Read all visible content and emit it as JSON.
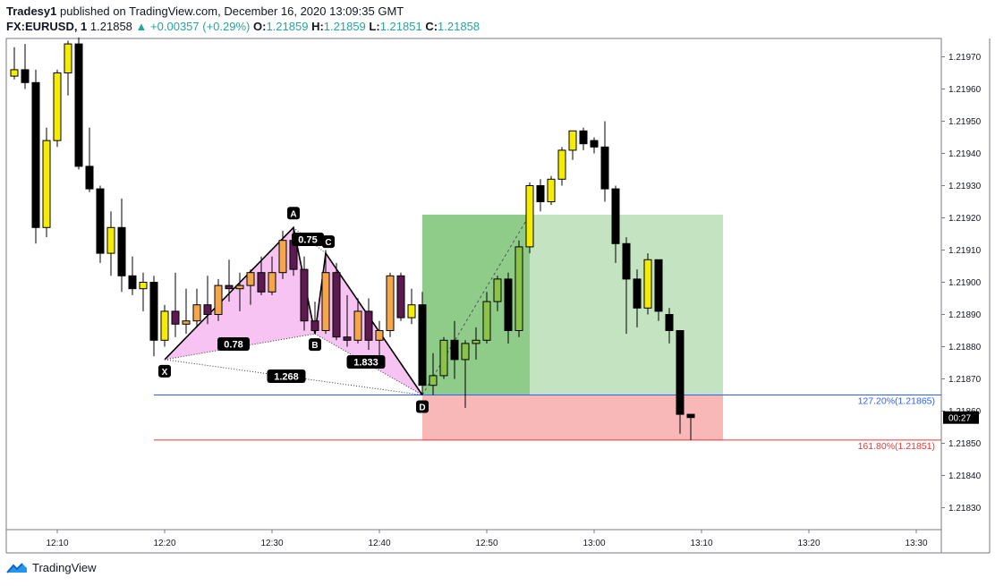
{
  "header": {
    "author": "Tradesy1",
    "published_text": "published on TradingView.com, December 16, 2020 13:09:35 GMT",
    "symbol": "FX:EURUSD, 1",
    "price": "1.21858",
    "change_arrow": "▲",
    "change": "+0.00357 (+0.29%)",
    "o_label": "O:",
    "o_value": "1.21859",
    "h_label": "H:",
    "h_value": "1.21859",
    "l_label": "L:",
    "l_value": "1.21851",
    "c_label": "C:",
    "c_value": "1.21858"
  },
  "footer": {
    "brand": "TradingView"
  },
  "chart_data": {
    "type": "candlestick",
    "timeframe": "1 minute",
    "y_range": [
      1.21823,
      1.21978
    ],
    "y_ticks": [
      "1.21970",
      "1.21960",
      "1.21950",
      "1.21940",
      "1.21930",
      "1.21920",
      "1.21910",
      "1.21900",
      "1.21890",
      "1.21880",
      "1.21870",
      "1.21860",
      "1.21850",
      "1.21840",
      "1.21830"
    ],
    "x_ticks": [
      "12:10",
      "12:20",
      "12:30",
      "12:40",
      "12:50",
      "13:00",
      "13:10",
      "13:20",
      "13:30"
    ],
    "current_price_label": "00:27",
    "colors": {
      "bearish": "#000000",
      "bullish_yellow": "#f5ec00",
      "bullish_green": "#8bc34a",
      "pattern_fill": "#f5b8f0",
      "pattern_candle_bear": "#5c1a4f",
      "pattern_candle_bull": "#f5a64a",
      "profit_zone": "#8fcc8a",
      "profit_zone_light": "#c4e3c1",
      "loss_zone": "#f9b8b8",
      "fib_127_color": "#2962ff",
      "fib_161_color": "#e53935"
    },
    "candles": [
      {
        "t": "12:06",
        "o": 1.21964,
        "h": 1.21973,
        "l": 1.21963,
        "c": 1.21966
      },
      {
        "t": "12:07",
        "o": 1.21966,
        "h": 1.21974,
        "l": 1.2196,
        "c": 1.21962
      },
      {
        "t": "12:08",
        "o": 1.21962,
        "h": 1.21966,
        "l": 1.21912,
        "c": 1.21917
      },
      {
        "t": "12:09",
        "o": 1.21917,
        "h": 1.21948,
        "l": 1.21914,
        "c": 1.21944
      },
      {
        "t": "12:10",
        "o": 1.21944,
        "h": 1.21966,
        "l": 1.21942,
        "c": 1.21965
      },
      {
        "t": "12:11",
        "o": 1.21965,
        "h": 1.21975,
        "l": 1.21958,
        "c": 1.21974
      },
      {
        "t": "12:12",
        "o": 1.21974,
        "h": 1.21976,
        "l": 1.21935,
        "c": 1.21936
      },
      {
        "t": "12:13",
        "o": 1.21936,
        "h": 1.21948,
        "l": 1.21928,
        "c": 1.21929
      },
      {
        "t": "12:14",
        "o": 1.21929,
        "h": 1.2193,
        "l": 1.21906,
        "c": 1.21909
      },
      {
        "t": "12:15",
        "o": 1.21909,
        "h": 1.21922,
        "l": 1.21902,
        "c": 1.21917
      },
      {
        "t": "12:16",
        "o": 1.21917,
        "h": 1.21926,
        "l": 1.21897,
        "c": 1.21902
      },
      {
        "t": "12:17",
        "o": 1.21902,
        "h": 1.21908,
        "l": 1.21896,
        "c": 1.21898
      },
      {
        "t": "12:18",
        "o": 1.21898,
        "h": 1.21903,
        "l": 1.21891,
        "c": 1.219
      },
      {
        "t": "12:19",
        "o": 1.219,
        "h": 1.21902,
        "l": 1.21877,
        "c": 1.21882
      },
      {
        "t": "12:20",
        "o": 1.21882,
        "h": 1.21893,
        "l": 1.2188,
        "c": 1.21891
      },
      {
        "t": "12:21",
        "o": 1.21891,
        "h": 1.21903,
        "l": 1.21883,
        "c": 1.21887
      },
      {
        "t": "12:22",
        "o": 1.21887,
        "h": 1.21898,
        "l": 1.21884,
        "c": 1.21888
      },
      {
        "t": "12:23",
        "o": 1.21888,
        "h": 1.21898,
        "l": 1.21886,
        "c": 1.21893
      },
      {
        "t": "12:24",
        "o": 1.21893,
        "h": 1.21902,
        "l": 1.21887,
        "c": 1.2189
      },
      {
        "t": "12:25",
        "o": 1.2189,
        "h": 1.21901,
        "l": 1.21888,
        "c": 1.21899
      },
      {
        "t": "12:26",
        "o": 1.21899,
        "h": 1.21907,
        "l": 1.21894,
        "c": 1.21898
      },
      {
        "t": "12:27",
        "o": 1.21898,
        "h": 1.21903,
        "l": 1.21891,
        "c": 1.21899
      },
      {
        "t": "12:28",
        "o": 1.21899,
        "h": 1.21904,
        "l": 1.21893,
        "c": 1.21903
      },
      {
        "t": "12:29",
        "o": 1.21903,
        "h": 1.21908,
        "l": 1.21896,
        "c": 1.21897
      },
      {
        "t": "12:30",
        "o": 1.21897,
        "h": 1.21908,
        "l": 1.21896,
        "c": 1.21903
      },
      {
        "t": "12:31",
        "o": 1.21903,
        "h": 1.21916,
        "l": 1.21901,
        "c": 1.21913
      },
      {
        "t": "12:32",
        "o": 1.21913,
        "h": 1.21917,
        "l": 1.21902,
        "c": 1.21904
      },
      {
        "t": "12:33",
        "o": 1.21904,
        "h": 1.21908,
        "l": 1.21885,
        "c": 1.21888
      },
      {
        "t": "12:34",
        "o": 1.21888,
        "h": 1.21894,
        "l": 1.21884,
        "c": 1.21885
      },
      {
        "t": "12:35",
        "o": 1.21885,
        "h": 1.2191,
        "l": 1.21884,
        "c": 1.21903
      },
      {
        "t": "12:36",
        "o": 1.21903,
        "h": 1.21906,
        "l": 1.21882,
        "c": 1.21883
      },
      {
        "t": "12:37",
        "o": 1.21883,
        "h": 1.21896,
        "l": 1.2188,
        "c": 1.21882
      },
      {
        "t": "12:38",
        "o": 1.21882,
        "h": 1.21895,
        "l": 1.21881,
        "c": 1.21891
      },
      {
        "t": "12:39",
        "o": 1.21891,
        "h": 1.21895,
        "l": 1.21879,
        "c": 1.21882
      },
      {
        "t": "12:40",
        "o": 1.21882,
        "h": 1.21888,
        "l": 1.21876,
        "c": 1.21885
      },
      {
        "t": "12:41",
        "o": 1.21885,
        "h": 1.21903,
        "l": 1.21883,
        "c": 1.21902
      },
      {
        "t": "12:42",
        "o": 1.21902,
        "h": 1.21903,
        "l": 1.21888,
        "c": 1.21889
      },
      {
        "t": "12:43",
        "o": 1.21889,
        "h": 1.21898,
        "l": 1.21887,
        "c": 1.21893
      },
      {
        "t": "12:44",
        "o": 1.21893,
        "h": 1.21897,
        "l": 1.21865,
        "c": 1.21868
      },
      {
        "t": "12:45",
        "o": 1.21868,
        "h": 1.21878,
        "l": 1.21865,
        "c": 1.21871
      },
      {
        "t": "12:46",
        "o": 1.21871,
        "h": 1.21883,
        "l": 1.2187,
        "c": 1.21882
      },
      {
        "t": "12:47",
        "o": 1.21882,
        "h": 1.21888,
        "l": 1.2187,
        "c": 1.21876
      },
      {
        "t": "12:48",
        "o": 1.21876,
        "h": 1.21882,
        "l": 1.21861,
        "c": 1.21881
      },
      {
        "t": "12:49",
        "o": 1.21881,
        "h": 1.21886,
        "l": 1.21876,
        "c": 1.21882
      },
      {
        "t": "12:50",
        "o": 1.21882,
        "h": 1.21897,
        "l": 1.21881,
        "c": 1.21894
      },
      {
        "t": "12:51",
        "o": 1.21894,
        "h": 1.21902,
        "l": 1.21891,
        "c": 1.21901
      },
      {
        "t": "12:52",
        "o": 1.21901,
        "h": 1.21903,
        "l": 1.21881,
        "c": 1.21885
      },
      {
        "t": "12:53",
        "o": 1.21885,
        "h": 1.21913,
        "l": 1.21883,
        "c": 1.21911
      },
      {
        "t": "12:54",
        "o": 1.21911,
        "h": 1.21931,
        "l": 1.21909,
        "c": 1.2193
      },
      {
        "t": "12:55",
        "o": 1.2193,
        "h": 1.21932,
        "l": 1.21922,
        "c": 1.21925
      },
      {
        "t": "12:56",
        "o": 1.21925,
        "h": 1.21933,
        "l": 1.21924,
        "c": 1.21932
      },
      {
        "t": "12:57",
        "o": 1.21932,
        "h": 1.21942,
        "l": 1.2193,
        "c": 1.21941
      },
      {
        "t": "12:58",
        "o": 1.21941,
        "h": 1.21947,
        "l": 1.21938,
        "c": 1.21947
      },
      {
        "t": "12:59",
        "o": 1.21947,
        "h": 1.21948,
        "l": 1.21941,
        "c": 1.21943
      },
      {
        "t": "13:00",
        "o": 1.21944,
        "h": 1.21945,
        "l": 1.2194,
        "c": 1.21942
      },
      {
        "t": "13:01",
        "o": 1.21942,
        "h": 1.2195,
        "l": 1.21925,
        "c": 1.21929
      },
      {
        "t": "13:02",
        "o": 1.21929,
        "h": 1.2193,
        "l": 1.21906,
        "c": 1.21912
      },
      {
        "t": "13:03",
        "o": 1.21912,
        "h": 1.21914,
        "l": 1.21884,
        "c": 1.21901
      },
      {
        "t": "13:04",
        "o": 1.21901,
        "h": 1.21904,
        "l": 1.21886,
        "c": 1.21892
      },
      {
        "t": "13:05",
        "o": 1.21892,
        "h": 1.21909,
        "l": 1.2189,
        "c": 1.21907
      },
      {
        "t": "13:06",
        "o": 1.21907,
        "h": 1.21907,
        "l": 1.21888,
        "c": 1.21891
      },
      {
        "t": "13:07",
        "o": 1.2189,
        "h": 1.21892,
        "l": 1.21881,
        "c": 1.21885
      },
      {
        "t": "13:08",
        "o": 1.21885,
        "h": 1.21885,
        "l": 1.21853,
        "c": 1.21859
      },
      {
        "t": "13:09",
        "o": 1.21859,
        "h": 1.21859,
        "l": 1.21851,
        "c": 1.21858
      }
    ],
    "harmonic_pattern": {
      "points": [
        {
          "label": "X",
          "time": "12:20",
          "price": 1.21876
        },
        {
          "label": "A",
          "time": "12:32",
          "price": 1.21917
        },
        {
          "label": "B",
          "time": "12:34",
          "price": 1.21884
        },
        {
          "label": "C",
          "time": "12:35",
          "price": 1.21909
        },
        {
          "label": "D",
          "time": "12:44",
          "price": 1.21865
        }
      ],
      "ratios": [
        {
          "value": "0.78",
          "between": "XB"
        },
        {
          "value": "0.75",
          "between": "AC"
        },
        {
          "value": "1.833",
          "between": "BD"
        },
        {
          "value": "1.268",
          "between": "XD"
        }
      ]
    },
    "fib_levels": [
      {
        "label": "127.20%(1.21865)",
        "price": 1.21865
      },
      {
        "label": "161.80%(1.21851)",
        "price": 1.21851
      }
    ],
    "position": {
      "entry": 1.21865,
      "target": 1.21921,
      "stop": 1.21851,
      "start_time": "12:44",
      "end_time": "13:12",
      "target_hit_time": "12:54"
    }
  }
}
